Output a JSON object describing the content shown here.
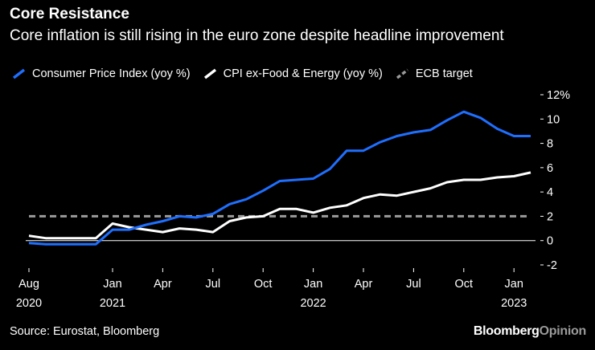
{
  "title": "Core Resistance",
  "subtitle": "Core inflation is still rising in the euro zone despite headline improvement",
  "source": "Source: Eurostat, Bloomberg",
  "brand": {
    "part1": "Bloomberg",
    "part2": "Opinion"
  },
  "colors": {
    "cpi": "#1f6fff",
    "core": "#ffffff",
    "target": "#9a9a9a",
    "axis": "#ffffff",
    "background": "#000000"
  },
  "legend": [
    {
      "label": "Consumer Price Index (yoy %)",
      "series": "cpi",
      "color": "#1f6fff",
      "icon": "slash-line-icon"
    },
    {
      "label": "CPI ex-Food & Energy (yoy %)",
      "series": "core",
      "color": "#ffffff",
      "icon": "slash-line-icon"
    },
    {
      "label": "ECB target",
      "series": "target",
      "color": "#9a9a9a",
      "icon": "dashed-slash-icon"
    }
  ],
  "chart_data": {
    "type": "line",
    "title": "Core Resistance",
    "subtitle": "Core inflation is still rising in the euro zone despite headline improvement",
    "xlabel": "",
    "ylabel": "",
    "ylim": [
      -2,
      12
    ],
    "y_ticks": [
      -2,
      0,
      2,
      4,
      6,
      8,
      10,
      12
    ],
    "y_tick_labels": [
      "-2",
      "0",
      "2",
      "4",
      "6",
      "8",
      "10",
      "12%"
    ],
    "grid": false,
    "x_start_index": 0,
    "x_ticks": [
      {
        "index": 0,
        "line1": "Aug",
        "line2": "2020"
      },
      {
        "index": 5,
        "line1": "Jan",
        "line2": "2021"
      },
      {
        "index": 8,
        "line1": "Apr",
        "line2": ""
      },
      {
        "index": 11,
        "line1": "Jul",
        "line2": ""
      },
      {
        "index": 14,
        "line1": "Oct",
        "line2": ""
      },
      {
        "index": 17,
        "line1": "Jan",
        "line2": "2022"
      },
      {
        "index": 20,
        "line1": "Apr",
        "line2": ""
      },
      {
        "index": 23,
        "line1": "Jul",
        "line2": ""
      },
      {
        "index": 26,
        "line1": "Oct",
        "line2": ""
      },
      {
        "index": 29,
        "line1": "Jan",
        "line2": "2023"
      }
    ],
    "x_months": [
      "2020-08",
      "2020-09",
      "2020-10",
      "2020-11",
      "2020-12",
      "2021-01",
      "2021-02",
      "2021-03",
      "2021-04",
      "2021-05",
      "2021-06",
      "2021-07",
      "2021-08",
      "2021-09",
      "2021-10",
      "2021-11",
      "2021-12",
      "2022-01",
      "2022-02",
      "2022-03",
      "2022-04",
      "2022-05",
      "2022-06",
      "2022-07",
      "2022-08",
      "2022-09",
      "2022-10",
      "2022-11",
      "2022-12",
      "2023-01",
      "2023-02"
    ],
    "series": [
      {
        "name": "Consumer Price Index (yoy %)",
        "key": "cpi",
        "style": "solid",
        "values": [
          -0.2,
          -0.3,
          -0.3,
          -0.3,
          -0.3,
          0.9,
          0.9,
          1.3,
          1.6,
          2.0,
          1.9,
          2.2,
          3.0,
          3.4,
          4.1,
          4.9,
          5.0,
          5.1,
          5.9,
          7.4,
          7.4,
          8.1,
          8.6,
          8.9,
          9.1,
          9.9,
          10.6,
          10.1,
          9.2,
          8.6,
          8.6
        ]
      },
      {
        "name": "CPI ex-Food & Energy (yoy %)",
        "key": "core",
        "style": "solid",
        "values": [
          0.4,
          0.2,
          0.2,
          0.2,
          0.2,
          1.4,
          1.1,
          0.9,
          0.7,
          1.0,
          0.9,
          0.7,
          1.6,
          1.9,
          2.0,
          2.6,
          2.6,
          2.3,
          2.7,
          2.9,
          3.5,
          3.8,
          3.7,
          4.0,
          4.3,
          4.8,
          5.0,
          5.0,
          5.2,
          5.3,
          5.6
        ]
      },
      {
        "name": "ECB target",
        "key": "target",
        "style": "dashed",
        "values": [
          2.0,
          2.0,
          2.0,
          2.0,
          2.0,
          2.0,
          2.0,
          2.0,
          2.0,
          2.0,
          2.0,
          2.0,
          2.0,
          2.0,
          2.0,
          2.0,
          2.0,
          2.0,
          2.0,
          2.0,
          2.0,
          2.0,
          2.0,
          2.0,
          2.0,
          2.0,
          2.0,
          2.0,
          2.0,
          2.0,
          2.0
        ]
      }
    ]
  }
}
